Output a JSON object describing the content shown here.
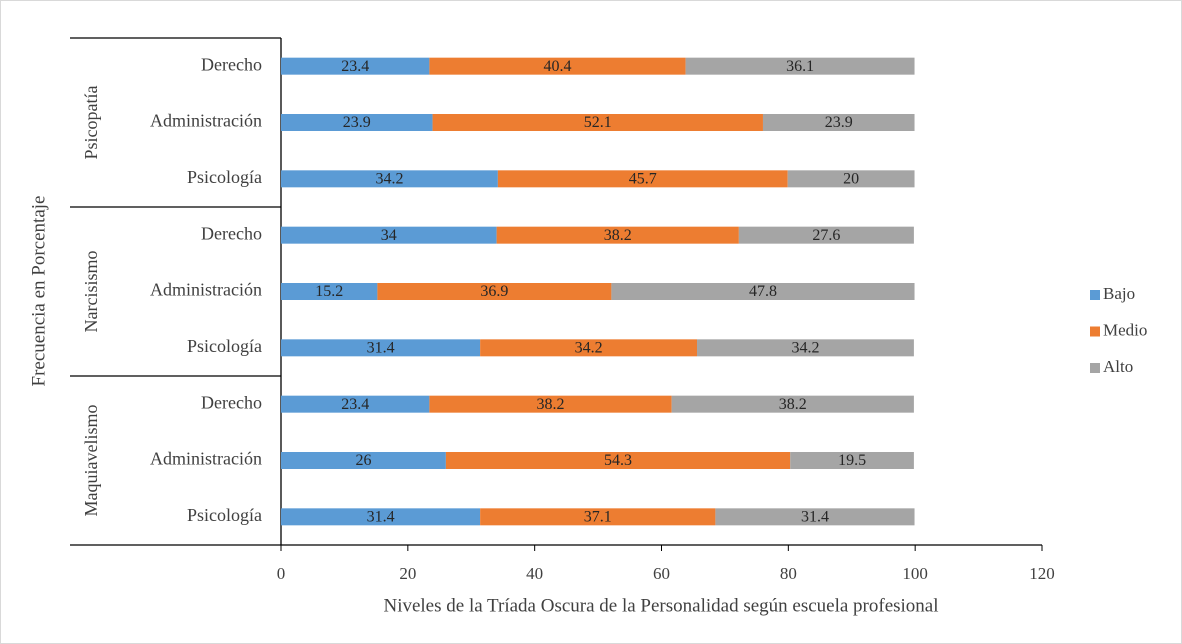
{
  "chart_data": {
    "type": "stacked-bar-horizontal",
    "xlabel": "Niveles de la Tríada Oscura de la Personalidad según escuela profesional",
    "ylabel": "Frecuencia en Porcentaje",
    "groups": [
      {
        "name": "Psicopatía",
        "categories": [
          "Derecho",
          "Administración",
          "Psicología"
        ]
      },
      {
        "name": "Narcisismo",
        "categories": [
          "Derecho",
          "Administración",
          "Psicología"
        ]
      },
      {
        "name": "Maquiavelismo",
        "categories": [
          "Derecho",
          "Administración",
          "Psicología"
        ]
      }
    ],
    "series": [
      {
        "name": "Bajo",
        "color": "#5b9bd5",
        "values": [
          23.4,
          23.9,
          34.2,
          34,
          15.2,
          31.4,
          23.4,
          26,
          31.4
        ]
      },
      {
        "name": "Medio",
        "color": "#ed7d31",
        "values": [
          40.4,
          52.1,
          45.7,
          38.2,
          36.9,
          34.2,
          38.2,
          54.3,
          37.1
        ]
      },
      {
        "name": "Alto",
        "color": "#a5a5a5",
        "values": [
          36.1,
          23.9,
          20,
          27.6,
          47.8,
          34.2,
          38.2,
          19.5,
          31.4
        ]
      }
    ],
    "xlim": [
      0,
      120
    ],
    "xticks": [
      0,
      20,
      40,
      60,
      80,
      100,
      120
    ],
    "legend": "right"
  }
}
